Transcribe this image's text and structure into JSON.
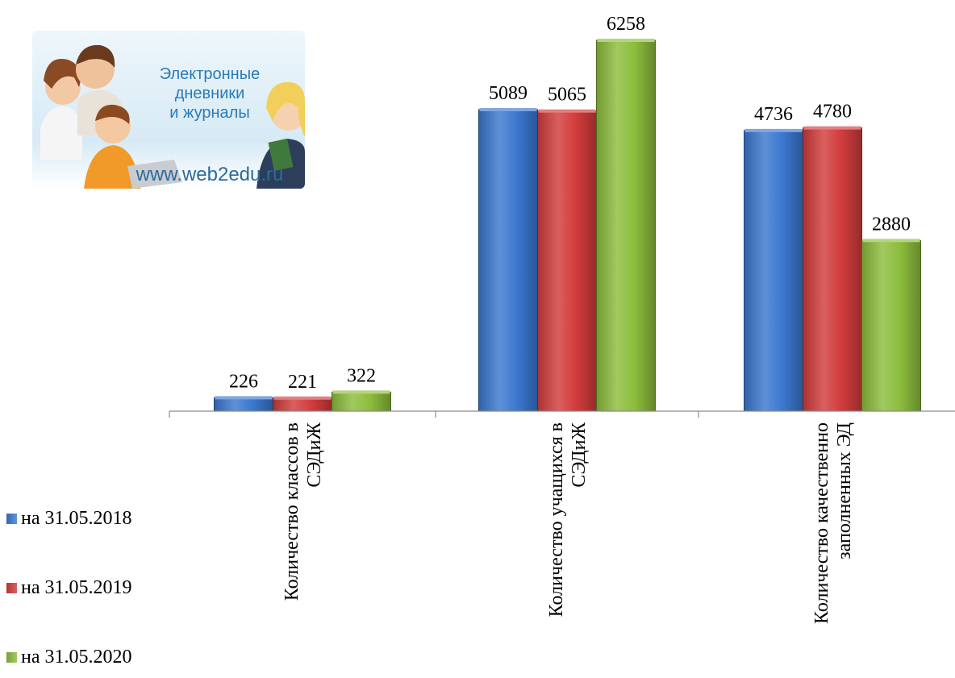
{
  "logo": {
    "lines": [
      "Электронные",
      "дневники",
      "и журналы"
    ],
    "url": "www.web2edu.ru"
  },
  "chart_data": {
    "type": "bar",
    "categories": [
      [
        "Количество классов в",
        "СЭДиЖ"
      ],
      [
        "Количество учащихся в",
        "СЭДиЖ"
      ],
      [
        "Количество качественно",
        "заполненных ЭД"
      ]
    ],
    "series": [
      {
        "name": "на 31.05.2018",
        "values": [
          226,
          5089,
          4736
        ],
        "color": "#3b78cf"
      },
      {
        "name": "на 31.05.2019",
        "values": [
          221,
          5065,
          4780
        ],
        "color": "#d23c3c"
      },
      {
        "name": "на 31.05.2020",
        "values": [
          322,
          6258,
          2880
        ],
        "color": "#8cbd3c"
      }
    ],
    "title": "",
    "xlabel": "",
    "ylabel": "",
    "ylim": [
      0,
      6258
    ],
    "grid": false,
    "legend": "left-bottom"
  }
}
